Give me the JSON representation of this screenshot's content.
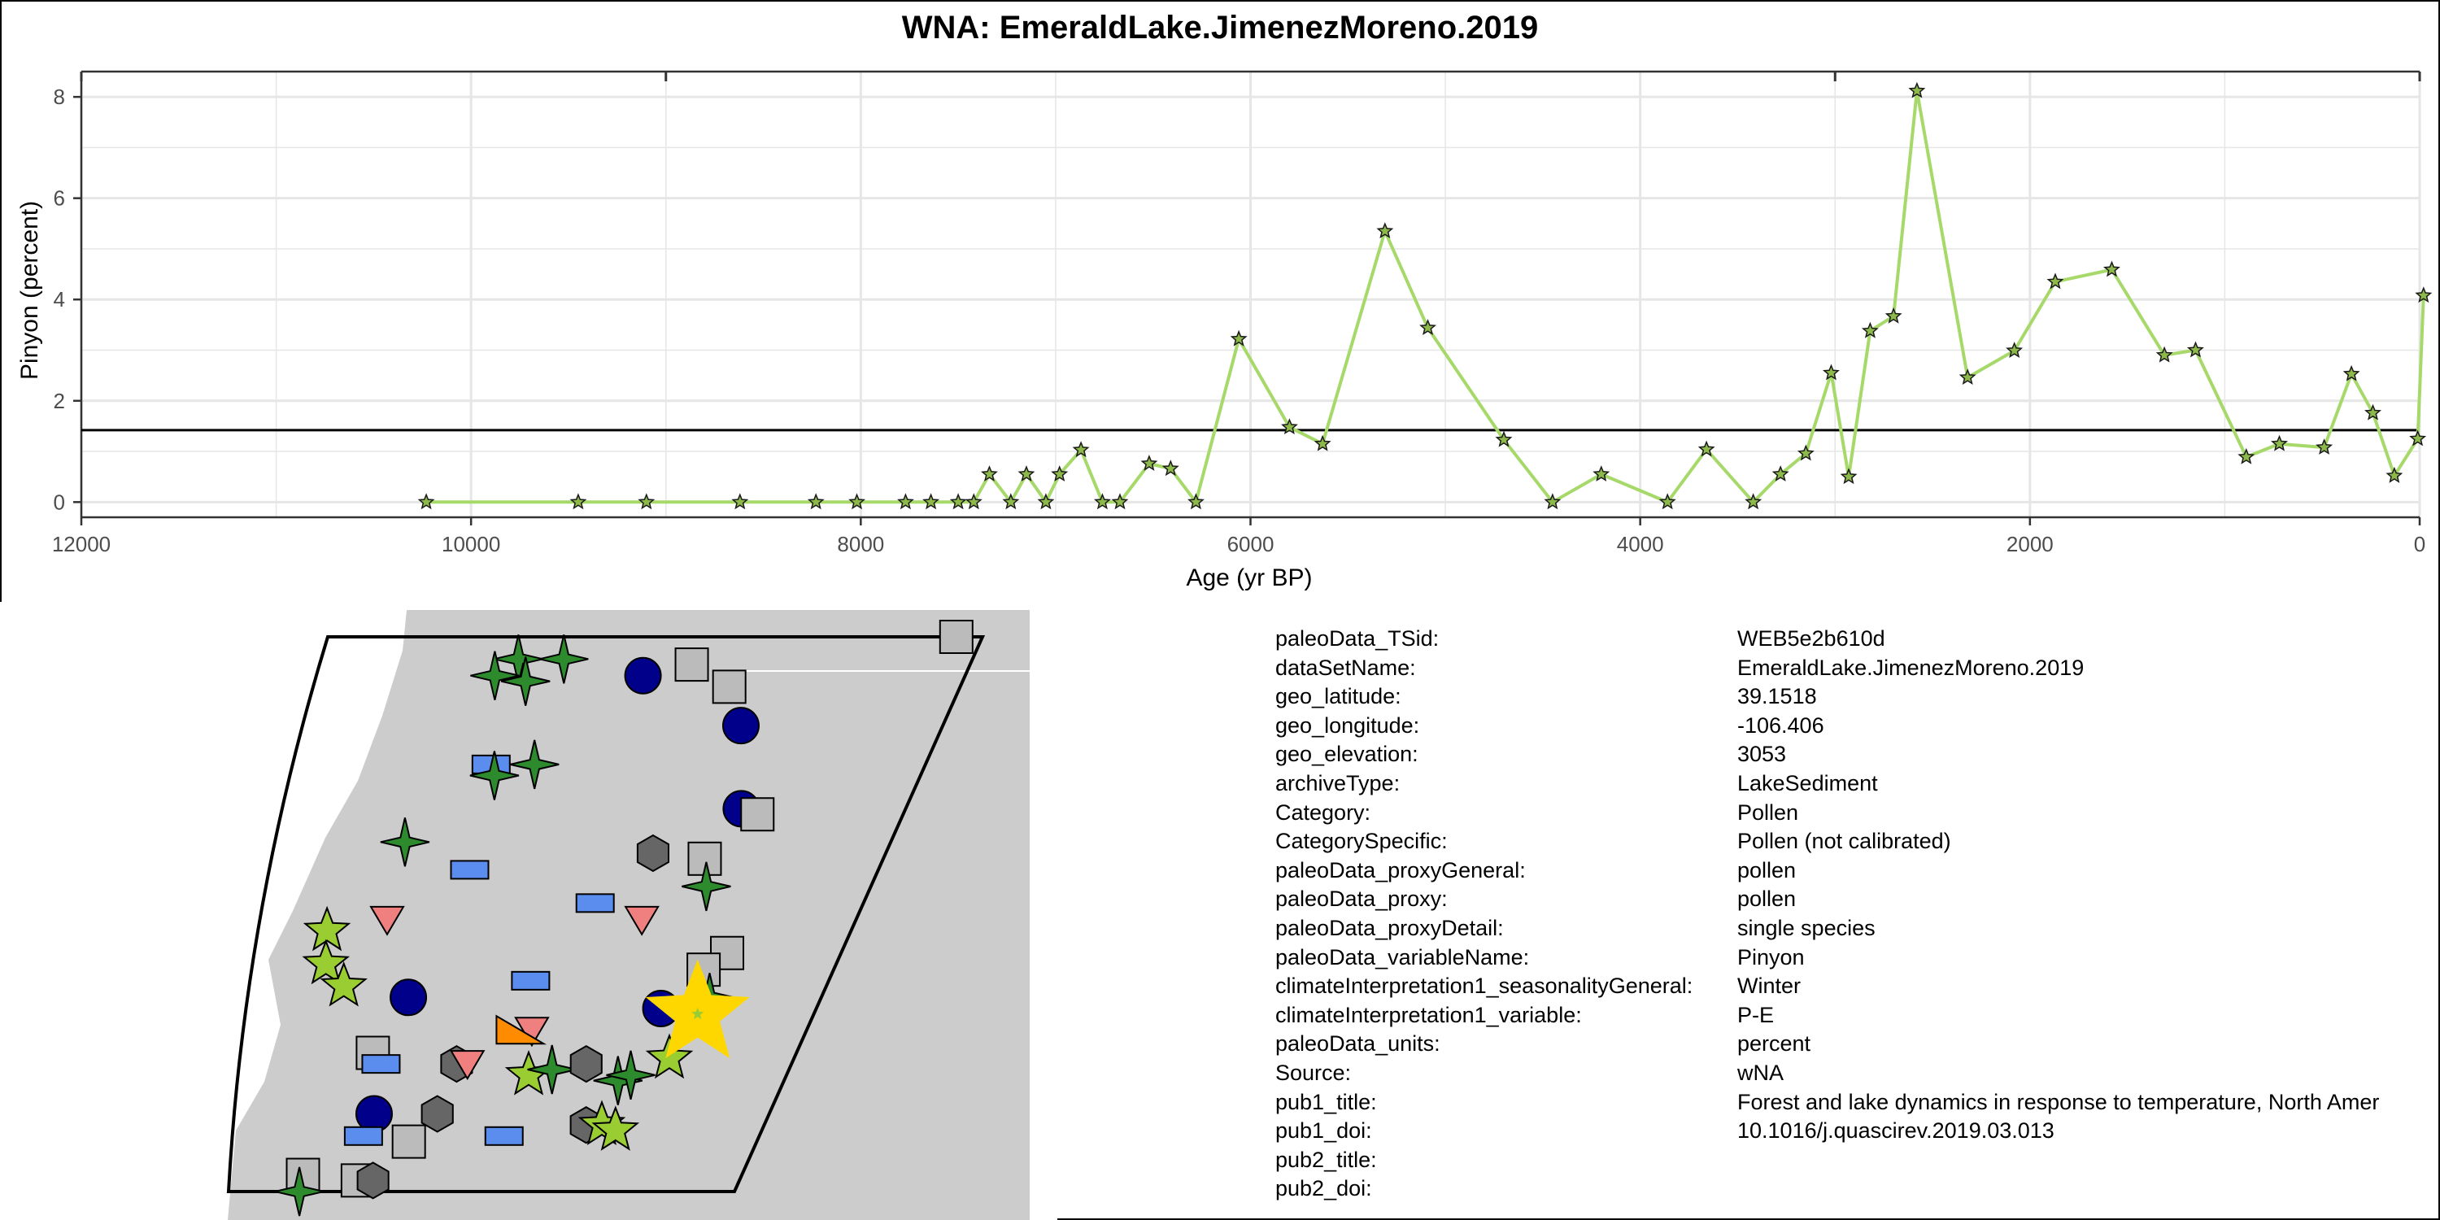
{
  "chart_data": {
    "type": "line",
    "title": "WNA: EmeraldLake.JimenezMoreno.2019",
    "xlabel": "Age (yr BP)",
    "ylabel": "Pinyon (percent)",
    "xlim": [
      12000,
      0
    ],
    "ylim": [
      -0.3,
      8.5
    ],
    "x_reversed": true,
    "x_ticks": [
      12000,
      10000,
      8000,
      6000,
      4000,
      2000,
      0
    ],
    "y_ticks": [
      0,
      2,
      4,
      6,
      8
    ],
    "grid": true,
    "reference_line_y": 1.42,
    "series": [
      {
        "color": "#a6d96a",
        "marker": "star",
        "x": [
          10230,
          9450,
          9100,
          8620,
          8230,
          8020,
          7770,
          7640,
          7500,
          7420,
          7340,
          7230,
          7150,
          7050,
          6980,
          6870,
          6760,
          6670,
          6520,
          6410,
          6280,
          6060,
          5800,
          5630,
          5310,
          5090,
          4700,
          4450,
          4200,
          3860,
          3660,
          3420,
          3280,
          3150,
          3020,
          2930,
          2820,
          2700,
          2580,
          2320,
          2080,
          1870,
          1580,
          1310,
          1150,
          890,
          720,
          490,
          350,
          240,
          130,
          10,
          -20
        ],
        "y": [
          0.0,
          0.0,
          0.0,
          0.0,
          0.0,
          0.0,
          0.0,
          0.0,
          0.0,
          0.0,
          0.55,
          0.0,
          0.55,
          0.0,
          0.55,
          1.03,
          0.0,
          0.0,
          0.76,
          0.66,
          0.0,
          3.22,
          1.48,
          1.15,
          5.35,
          3.44,
          1.23,
          0.0,
          0.55,
          0.0,
          1.04,
          0.0,
          0.55,
          0.96,
          2.55,
          0.5,
          3.38,
          3.67,
          8.12,
          2.46,
          2.99,
          4.35,
          4.59,
          2.9,
          3.0,
          0.89,
          1.15,
          1.08,
          2.53,
          1.76,
          0.52,
          1.25,
          4.08
        ]
      }
    ]
  },
  "map": {
    "land_color": "#cccccc",
    "sea_color": "#ffffff",
    "highlight_color": "#ffd700",
    "markers": [
      {
        "shape": "star4",
        "color": "#2d8b2d",
        "lon": 0.3,
        "lat": 0.96
      },
      {
        "shape": "star4",
        "color": "#2d8b2d",
        "lon": 0.27,
        "lat": 0.93
      },
      {
        "shape": "star4",
        "color": "#2d8b2d",
        "lon": 0.32,
        "lat": 0.92
      },
      {
        "shape": "star4",
        "color": "#2d8b2d",
        "lon": 0.37,
        "lat": 0.96
      },
      {
        "shape": "circle",
        "color": "#00008b",
        "lon": 0.5,
        "lat": 0.93
      },
      {
        "shape": "square",
        "color": "#bbbbbb",
        "lon": 0.57,
        "lat": 0.95
      },
      {
        "shape": "square",
        "color": "#bbbbbb",
        "lon": 0.64,
        "lat": 0.91
      },
      {
        "shape": "square",
        "color": "#bbbbbb",
        "lon": 0.96,
        "lat": 1.0
      },
      {
        "shape": "circle",
        "color": "#00008b",
        "lon": 0.68,
        "lat": 0.84
      },
      {
        "shape": "rect",
        "color": "#5b8def",
        "lon": 0.3,
        "lat": 0.77
      },
      {
        "shape": "star4",
        "color": "#2d8b2d",
        "lon": 0.31,
        "lat": 0.75
      },
      {
        "shape": "star4",
        "color": "#2d8b2d",
        "lon": 0.37,
        "lat": 0.77
      },
      {
        "shape": "circle",
        "color": "#00008b",
        "lon": 0.73,
        "lat": 0.69
      },
      {
        "shape": "square",
        "color": "#bbbbbb",
        "lon": 0.76,
        "lat": 0.68
      },
      {
        "shape": "star4",
        "color": "#2d8b2d",
        "lon": 0.19,
        "lat": 0.63
      },
      {
        "shape": "hexagon",
        "color": "#666666",
        "lon": 0.61,
        "lat": 0.61
      },
      {
        "shape": "square",
        "color": "#bbbbbb",
        "lon": 0.7,
        "lat": 0.6
      },
      {
        "shape": "rect",
        "color": "#5b8def",
        "lon": 0.31,
        "lat": 0.58
      },
      {
        "shape": "star4",
        "color": "#2d8b2d",
        "lon": 0.72,
        "lat": 0.55
      },
      {
        "shape": "rect",
        "color": "#5b8def",
        "lon": 0.54,
        "lat": 0.52
      },
      {
        "shape": "triangle-down",
        "color": "#f08080",
        "lon": 0.19,
        "lat": 0.49
      },
      {
        "shape": "triangle-down",
        "color": "#f08080",
        "lon": 0.63,
        "lat": 0.49
      },
      {
        "shape": "star5",
        "color": "#9acd32",
        "lon": 0.09,
        "lat": 0.47
      },
      {
        "shape": "star5",
        "color": "#9acd32",
        "lon": 0.1,
        "lat": 0.41
      },
      {
        "shape": "star5",
        "color": "#9acd32",
        "lon": 0.14,
        "lat": 0.37
      },
      {
        "shape": "square",
        "color": "#bbbbbb",
        "lon": 0.8,
        "lat": 0.43
      },
      {
        "shape": "square",
        "color": "#bbbbbb",
        "lon": 0.77,
        "lat": 0.4
      },
      {
        "shape": "rect",
        "color": "#5b8def",
        "lon": 0.47,
        "lat": 0.38
      },
      {
        "shape": "circle",
        "color": "#00008b",
        "lon": 0.26,
        "lat": 0.35
      },
      {
        "shape": "circle",
        "color": "#00008b",
        "lon": 0.72,
        "lat": 0.33
      },
      {
        "shape": "star4",
        "color": "#2d8b2d",
        "lon": 0.8,
        "lat": 0.35
      },
      {
        "shape": "triangle-down",
        "color": "#f08080",
        "lon": 0.5,
        "lat": 0.29
      },
      {
        "shape": "triangle-right",
        "color": "#ff8c00",
        "lon": 0.48,
        "lat": 0.29
      },
      {
        "shape": "square",
        "color": "#bbbbbb",
        "lon": 0.22,
        "lat": 0.25
      },
      {
        "shape": "rect",
        "color": "#5b8def",
        "lon": 0.24,
        "lat": 0.23
      },
      {
        "shape": "hexagon",
        "color": "#666666",
        "lon": 0.38,
        "lat": 0.23
      },
      {
        "shape": "triangle-down",
        "color": "#f08080",
        "lon": 0.4,
        "lat": 0.23
      },
      {
        "shape": "star5",
        "color": "#9acd32",
        "lon": 0.52,
        "lat": 0.21
      },
      {
        "shape": "star4",
        "color": "#2d8b2d",
        "lon": 0.56,
        "lat": 0.22
      },
      {
        "shape": "hexagon",
        "color": "#666666",
        "lon": 0.62,
        "lat": 0.23
      },
      {
        "shape": "star4",
        "color": "#2d8b2d",
        "lon": 0.69,
        "lat": 0.2
      },
      {
        "shape": "star4",
        "color": "#2d8b2d",
        "lon": 0.71,
        "lat": 0.21
      },
      {
        "shape": "star5",
        "color": "#9acd32",
        "lon": 0.77,
        "lat": 0.24
      },
      {
        "shape": "circle",
        "color": "#00008b",
        "lon": 0.25,
        "lat": 0.14
      },
      {
        "shape": "hexagon",
        "color": "#666666",
        "lon": 0.37,
        "lat": 0.14
      },
      {
        "shape": "rect",
        "color": "#5b8def",
        "lon": 0.24,
        "lat": 0.1
      },
      {
        "shape": "square",
        "color": "#bbbbbb",
        "lon": 0.33,
        "lat": 0.09
      },
      {
        "shape": "hexagon",
        "color": "#666666",
        "lon": 0.66,
        "lat": 0.12
      },
      {
        "shape": "star5",
        "color": "#9acd32",
        "lon": 0.69,
        "lat": 0.12
      },
      {
        "shape": "star5",
        "color": "#9acd32",
        "lon": 0.72,
        "lat": 0.11
      },
      {
        "shape": "rect",
        "color": "#5b8def",
        "lon": 0.51,
        "lat": 0.1
      },
      {
        "shape": "square",
        "color": "#bbbbbb",
        "lon": 0.14,
        "lat": 0.03
      },
      {
        "shape": "star4",
        "color": "#2d8b2d",
        "lon": 0.14,
        "lat": 0.0
      },
      {
        "shape": "square",
        "color": "#bbbbbb",
        "lon": 0.25,
        "lat": 0.02
      },
      {
        "shape": "hexagon",
        "color": "#666666",
        "lon": 0.28,
        "lat": 0.02
      }
    ],
    "highlight": {
      "shape": "star5",
      "lon": 0.79,
      "lat": 0.32
    }
  },
  "metadata": [
    {
      "key": "paleoData_TSid:",
      "value": "WEB5e2b610d"
    },
    {
      "key": "dataSetName:",
      "value": "EmeraldLake.JimenezMoreno.2019"
    },
    {
      "key": "geo_latitude:",
      "value": "39.1518"
    },
    {
      "key": "geo_longitude:",
      "value": "-106.406"
    },
    {
      "key": "geo_elevation:",
      "value": "3053"
    },
    {
      "key": "archiveType:",
      "value": "LakeSediment"
    },
    {
      "key": "Category:",
      "value": "Pollen"
    },
    {
      "key": "CategorySpecific:",
      "value": "Pollen (not calibrated)"
    },
    {
      "key": "paleoData_proxyGeneral:",
      "value": "pollen"
    },
    {
      "key": "paleoData_proxy:",
      "value": "pollen"
    },
    {
      "key": "paleoData_proxyDetail:",
      "value": "single species"
    },
    {
      "key": "paleoData_variableName:",
      "value": "Pinyon"
    },
    {
      "key": "climateInterpretation1_seasonalityGeneral:",
      "value": "Winter"
    },
    {
      "key": "climateInterpretation1_variable:",
      "value": "P-E"
    },
    {
      "key": "paleoData_units:",
      "value": "percent"
    },
    {
      "key": "Source:",
      "value": "wNA"
    },
    {
      "key": "pub1_title:",
      "value": "Forest and lake dynamics in response to temperature, North Amer"
    },
    {
      "key": "pub1_doi:",
      "value": "10.1016/j.quascirev.2019.03.013"
    },
    {
      "key": "pub2_title:",
      "value": ""
    },
    {
      "key": "pub2_doi:",
      "value": ""
    }
  ]
}
